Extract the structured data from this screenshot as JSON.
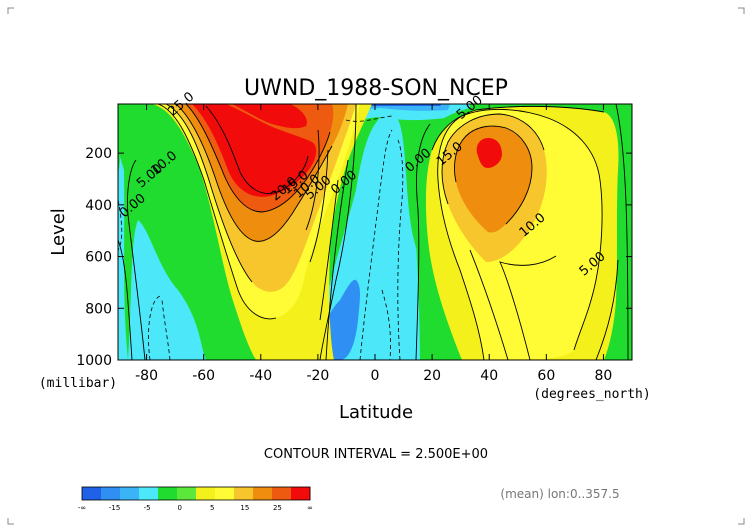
{
  "chart_data": {
    "type": "contour",
    "title": "UWND_1988-SON_NCEP",
    "xlabel": "Latitude",
    "ylabel": "Level",
    "x_unit": "(degrees_north)",
    "y_unit": "(millibar)",
    "xlim": [
      -90,
      90
    ],
    "ylim": [
      1000,
      10
    ],
    "x_ticks": [
      -80,
      -60,
      -40,
      -20,
      0,
      20,
      40,
      60,
      80
    ],
    "y_ticks": [
      200,
      400,
      600,
      800,
      1000
    ],
    "contour_interval_text": "CONTOUR INTERVAL = 2.500E+00",
    "footnote": "(mean) lon:0..357.5",
    "contour_labels": [
      {
        "text": "25.0",
        "lat": -67,
        "lev": 22
      },
      {
        "text": "20.0",
        "lat": -31,
        "lev": 350
      },
      {
        "text": "15.0",
        "lat": -27,
        "lev": 325
      },
      {
        "text": "10.0",
        "lat": -23,
        "lev": 340
      },
      {
        "text": "5.00",
        "lat": -19,
        "lev": 345
      },
      {
        "text": "0.00",
        "lat": -10,
        "lev": 325
      },
      {
        "text": "10.0",
        "lat": -73,
        "lev": 250
      },
      {
        "text": "5.00",
        "lat": -78,
        "lev": 300
      },
      {
        "text": "0.00",
        "lat": -84,
        "lev": 415
      },
      {
        "text": "0.00",
        "lat": 16,
        "lev": 240
      },
      {
        "text": "15.0",
        "lat": 27,
        "lev": 215
      },
      {
        "text": "5.00",
        "lat": 34,
        "lev": 35
      },
      {
        "text": "10.0",
        "lat": 56,
        "lev": 490
      },
      {
        "text": "5.00",
        "lat": 77,
        "lev": 640
      }
    ],
    "colorbar": {
      "tick_labels": [
        "-∞",
        "-15",
        "-5",
        "0",
        "5",
        "15",
        "25",
        "∞"
      ],
      "colors": [
        "#1f62e8",
        "#2f8ff2",
        "#3ab4f6",
        "#4ce7f8",
        "#1fdc2f",
        "#5ce83a",
        "#f3f01c",
        "#fffb34",
        "#f6c62c",
        "#ef8d0e",
        "#ee5a0f",
        "#f20b0b"
      ]
    },
    "features": [
      {
        "name": "SH subtropical jet core",
        "max_value": 27.5,
        "lat": -55,
        "lev": 150
      },
      {
        "name": "NH subtropical jet core",
        "max_value": 25.0,
        "lat": 40,
        "lev": 200
      },
      {
        "name": "tropical easterlies",
        "min_value": -5.0,
        "lat": -5,
        "lev": 900
      }
    ]
  }
}
